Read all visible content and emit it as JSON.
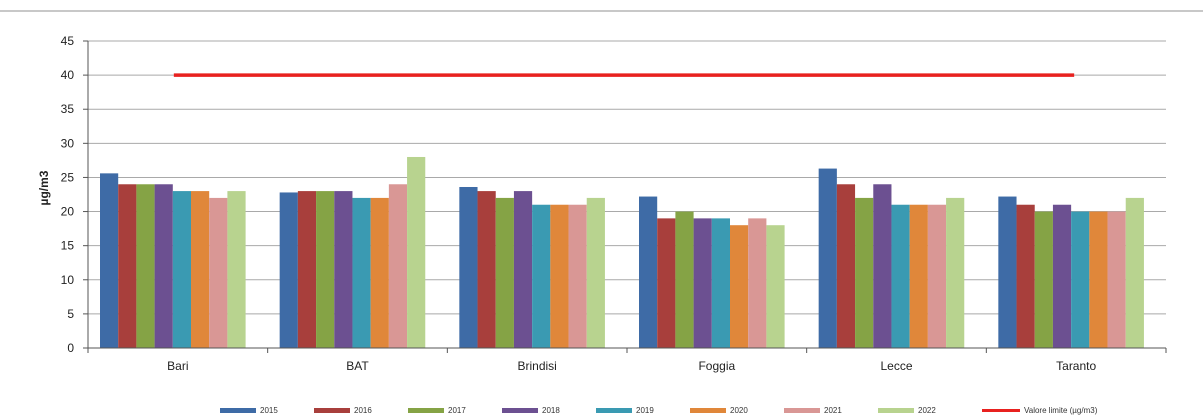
{
  "chart_data": {
    "type": "bar",
    "title": "",
    "xlabel": "",
    "ylabel": "µg/m3",
    "ylim": [
      0,
      45
    ],
    "yticks": [
      0,
      5,
      10,
      15,
      20,
      25,
      30,
      35,
      40,
      45
    ],
    "grid": true,
    "legend_position": "bottom",
    "categories": [
      "Bari",
      "BAT",
      "Brindisi",
      "Foggia",
      "Lecce",
      "Taranto"
    ],
    "series": [
      {
        "name": "2015",
        "color": "#3E6BA6",
        "values": [
          25.6,
          22.8,
          23.6,
          22.2,
          26.3,
          22.2
        ]
      },
      {
        "name": "2016",
        "color": "#A83F3C",
        "values": [
          24,
          23,
          23,
          19,
          24,
          21
        ]
      },
      {
        "name": "2017",
        "color": "#85A345",
        "values": [
          24,
          23,
          22,
          20,
          22,
          20
        ]
      },
      {
        "name": "2018",
        "color": "#6C5091",
        "values": [
          24,
          23,
          23,
          19,
          24,
          21
        ]
      },
      {
        "name": "2019",
        "color": "#3A9AB2",
        "values": [
          23,
          22,
          21,
          19,
          21,
          20
        ]
      },
      {
        "name": "2020",
        "color": "#E0873A",
        "values": [
          23,
          22,
          21,
          18,
          21,
          20
        ]
      },
      {
        "name": "2021",
        "color": "#D99795",
        "values": [
          22,
          24,
          21,
          19,
          21,
          20
        ]
      },
      {
        "name": "2022",
        "color": "#B8D38F",
        "values": [
          23,
          28,
          22,
          18,
          22,
          22
        ]
      }
    ],
    "reference_line": {
      "name": "Valore limite (µg/m3)",
      "value": 40,
      "color": "#E8211F"
    }
  }
}
